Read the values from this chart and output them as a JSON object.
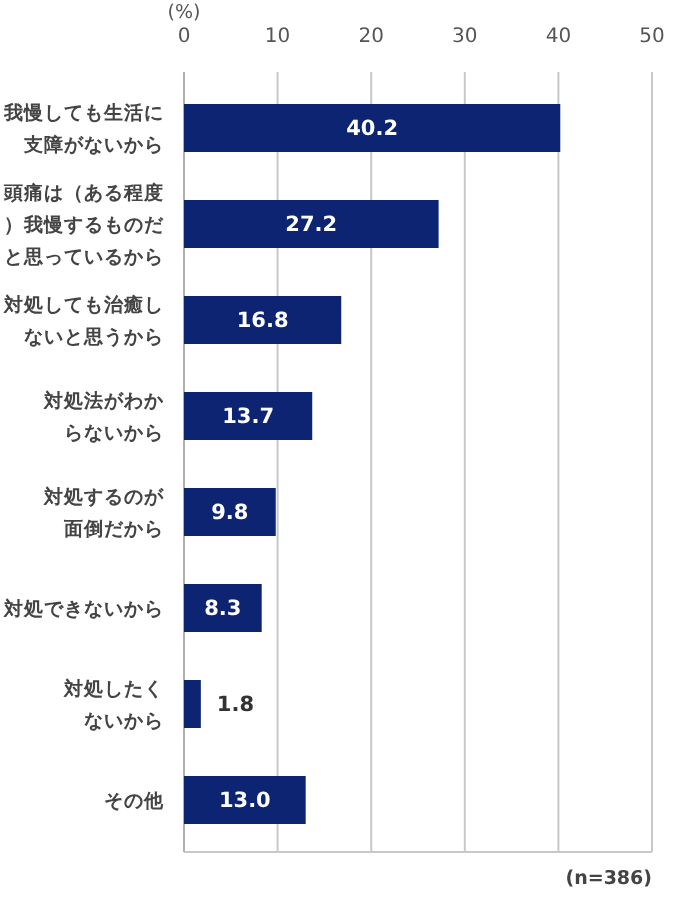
{
  "chart_data": {
    "type": "bar",
    "orientation": "horizontal",
    "xlabel": "(%)",
    "categories": [
      "我慢しても生活に支障がないから",
      "頭痛は（ある程度）我慢するものだと思っているから",
      "対処しても治癒しないと思うから",
      "対処法がわからないから",
      "対処するのが面倒だから",
      "対処できないから",
      "対処したくないから",
      "その他"
    ],
    "values": [
      40.2,
      27.2,
      16.8,
      13.7,
      9.8,
      8.3,
      1.8,
      13.0
    ],
    "color": "#0c2471",
    "value_labels": [
      "40.2",
      "27.2",
      "16.8",
      "13.7",
      "9.8",
      "8.3",
      "1.8",
      "13.0"
    ],
    "xlim": [
      0,
      50
    ],
    "xticks": [
      0,
      10,
      20,
      30,
      40,
      50
    ],
    "grid": "x",
    "annotations": [
      "(n=386)"
    ]
  }
}
